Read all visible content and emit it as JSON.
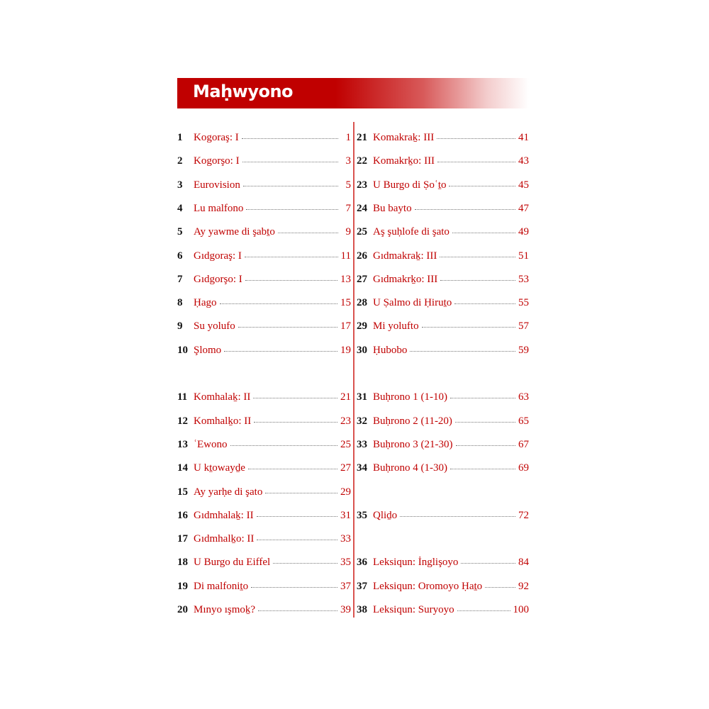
{
  "header": {
    "title": "Maḥwyono",
    "accent_color": "#c00000"
  },
  "toc": {
    "left": [
      {
        "num": "1",
        "title": "Kogoraş: I",
        "page": "1"
      },
      {
        "num": "2",
        "title": "Kogorşo: I",
        "page": "3"
      },
      {
        "num": "3",
        "title": "Eurovision",
        "page": "5"
      },
      {
        "num": "4",
        "title": "Lu malfono",
        "page": "7"
      },
      {
        "num": "5",
        "title": "Ay yawme di şabṯo",
        "page": "9"
      },
      {
        "num": "6",
        "title": "Gıdgoraş: I",
        "page": "11"
      },
      {
        "num": "7",
        "title": "Gıdgorşo: I",
        "page": "13"
      },
      {
        "num": "8",
        "title": "Ḥago",
        "page": "15"
      },
      {
        "num": "9",
        "title": "Su yolufo",
        "page": "17"
      },
      {
        "num": "10",
        "title": "Şlomo",
        "page": "19"
      },
      {
        "num": "11",
        "title": "Komhalaḵ: II",
        "page": "21"
      },
      {
        "num": "12",
        "title": "Komhalḵo: II",
        "page": "23"
      },
      {
        "num": "13",
        "title": "ʿEwono",
        "page": "25"
      },
      {
        "num": "14",
        "title": "U kṯowayḏe",
        "page": "27"
      },
      {
        "num": "15",
        "title": "Ay yarḥe di şato",
        "page": "29"
      },
      {
        "num": "16",
        "title": "Gıdmhalaḵ: II",
        "page": "31"
      },
      {
        "num": "17",
        "title": "Gıdmhalḵo: II",
        "page": "33"
      },
      {
        "num": "18",
        "title": "U Burgo du Eiffel",
        "page": "35"
      },
      {
        "num": "19",
        "title": "Di malfoniṯo",
        "page": "37"
      },
      {
        "num": "20",
        "title": "Mınyo ışmoḵ?",
        "page": "39"
      }
    ],
    "right": [
      {
        "num": "21",
        "title": "Komakraḵ: III",
        "page": "41"
      },
      {
        "num": "22",
        "title": "Komakrḵo: III",
        "page": "43"
      },
      {
        "num": "23",
        "title": "U Burgo di Ṣoʿṯo",
        "page": "45"
      },
      {
        "num": "24",
        "title": "Bu bayto",
        "page": "47"
      },
      {
        "num": "25",
        "title": "Aş şuḥlofe di şato",
        "page": "49"
      },
      {
        "num": "26",
        "title": "Gıdmakraḵ: III",
        "page": "51"
      },
      {
        "num": "27",
        "title": "Gıdmakrḵo: III",
        "page": "53"
      },
      {
        "num": "28",
        "title": "U Ṣalmo di Ḥiruṯo",
        "page": "55"
      },
      {
        "num": "29",
        "title": "Mi yolufto",
        "page": "57"
      },
      {
        "num": "30",
        "title": "Ḥubobo",
        "page": "59"
      },
      {
        "num": "31",
        "title": "Buḥrono 1 (1-10)",
        "page": "63"
      },
      {
        "num": "32",
        "title": "Buḥrono 2 (11-20)",
        "page": "65"
      },
      {
        "num": "33",
        "title": "Buḥrono 3 (21-30)",
        "page": "67"
      },
      {
        "num": "34",
        "title": "Buḥrono 4 (1-30)",
        "page": "69"
      },
      {
        "num": "35",
        "title": "Qliḏo",
        "page": "72"
      },
      {
        "num": "36",
        "title": "Leksiqun: İnglişoyo",
        "page": "84"
      },
      {
        "num": "37",
        "title": "Leksiqun: Oromoyo Ḥaṯo",
        "page": "92"
      },
      {
        "num": "38",
        "title": "Leksiqun: Suryoyo",
        "page": "100"
      }
    ]
  }
}
